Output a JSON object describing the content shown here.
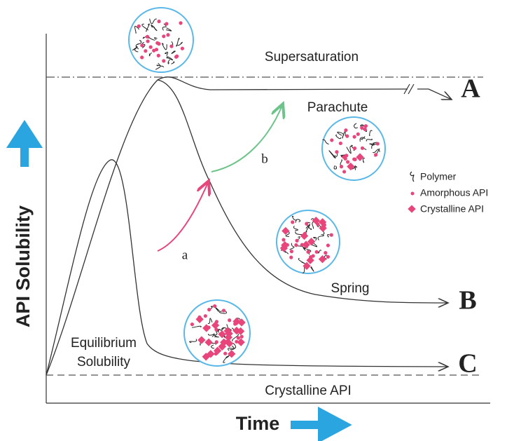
{
  "diagram": {
    "y_axis_label": "API Solubility",
    "x_axis_label": "Time",
    "supersaturation_label": "Supersaturation",
    "crystalline_label": "Crystalline API",
    "equilibrium_label": [
      "Equilibrium",
      "Solubility"
    ],
    "parachute_label": "Parachute",
    "spring_label": "Spring",
    "curves": [
      {
        "label": "A"
      },
      {
        "label": "B"
      },
      {
        "label": "C"
      }
    ],
    "arrows": [
      {
        "label": "a"
      },
      {
        "label": "b"
      }
    ],
    "legend": [
      "Polymer",
      "Amorphous API",
      "Crystalline API"
    ]
  }
}
